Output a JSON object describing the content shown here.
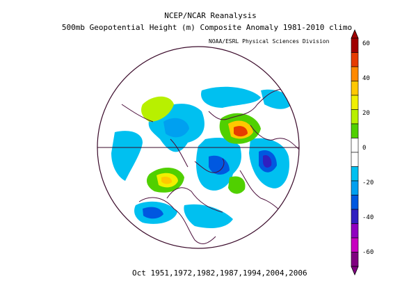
{
  "title": "NCEP/NCAR Reanalysis",
  "subtitle": "500mb Geopotential Height (m) Composite Anomaly 1981-2010 climo",
  "credit": "NOAA/ESRL Physical Sciences Division",
  "footer": "Oct 1951,1972,1982,1987,1994,2004,2006",
  "colorbar": {
    "labels": [
      "60",
      "40",
      "20",
      "0",
      "-20",
      "-40",
      "-60"
    ],
    "colors": [
      "#a00000",
      "#e63c00",
      "#ff8a00",
      "#ffc800",
      "#f0f000",
      "#b8f000",
      "#50d000",
      "#ffffff",
      "#ffffff",
      "#00c0f0",
      "#00a0f0",
      "#0058e0",
      "#3020c0",
      "#9000c0",
      "#c800c0",
      "#800080"
    ]
  },
  "legend_levels_m": [
    60,
    50,
    40,
    30,
    20,
    10,
    0,
    -10,
    -20,
    -30,
    -40,
    -50,
    -60
  ],
  "projection": "north-polar-stereographic"
}
